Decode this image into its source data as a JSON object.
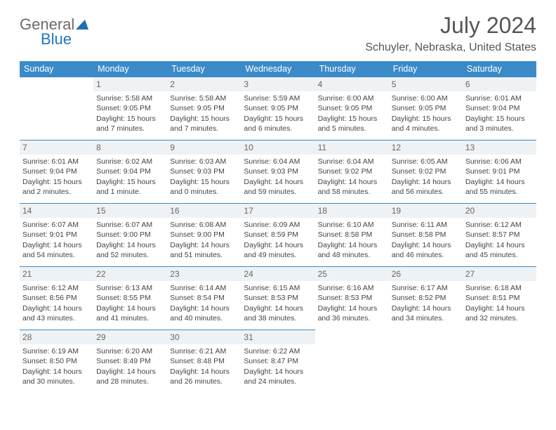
{
  "logo": {
    "general": "General",
    "blue": "Blue"
  },
  "header": {
    "title": "July 2024",
    "location": "Schuyler, Nebraska, United States"
  },
  "colors": {
    "header_bg": "#3b8bc9",
    "header_text": "#ffffff",
    "daynum_bg": "#eff2f4",
    "border": "#3b8bc9",
    "text": "#444444",
    "title_text": "#555555",
    "logo_gray": "#6b6b6b",
    "logo_blue": "#2176bd"
  },
  "weekdays": [
    "Sunday",
    "Monday",
    "Tuesday",
    "Wednesday",
    "Thursday",
    "Friday",
    "Saturday"
  ],
  "weeks": [
    [
      null,
      {
        "n": "1",
        "sr": "Sunrise: 5:58 AM",
        "ss": "Sunset: 9:05 PM",
        "dl1": "Daylight: 15 hours",
        "dl2": "and 7 minutes."
      },
      {
        "n": "2",
        "sr": "Sunrise: 5:58 AM",
        "ss": "Sunset: 9:05 PM",
        "dl1": "Daylight: 15 hours",
        "dl2": "and 7 minutes."
      },
      {
        "n": "3",
        "sr": "Sunrise: 5:59 AM",
        "ss": "Sunset: 9:05 PM",
        "dl1": "Daylight: 15 hours",
        "dl2": "and 6 minutes."
      },
      {
        "n": "4",
        "sr": "Sunrise: 6:00 AM",
        "ss": "Sunset: 9:05 PM",
        "dl1": "Daylight: 15 hours",
        "dl2": "and 5 minutes."
      },
      {
        "n": "5",
        "sr": "Sunrise: 6:00 AM",
        "ss": "Sunset: 9:05 PM",
        "dl1": "Daylight: 15 hours",
        "dl2": "and 4 minutes."
      },
      {
        "n": "6",
        "sr": "Sunrise: 6:01 AM",
        "ss": "Sunset: 9:04 PM",
        "dl1": "Daylight: 15 hours",
        "dl2": "and 3 minutes."
      }
    ],
    [
      {
        "n": "7",
        "sr": "Sunrise: 6:01 AM",
        "ss": "Sunset: 9:04 PM",
        "dl1": "Daylight: 15 hours",
        "dl2": "and 2 minutes."
      },
      {
        "n": "8",
        "sr": "Sunrise: 6:02 AM",
        "ss": "Sunset: 9:04 PM",
        "dl1": "Daylight: 15 hours",
        "dl2": "and 1 minute."
      },
      {
        "n": "9",
        "sr": "Sunrise: 6:03 AM",
        "ss": "Sunset: 9:03 PM",
        "dl1": "Daylight: 15 hours",
        "dl2": "and 0 minutes."
      },
      {
        "n": "10",
        "sr": "Sunrise: 6:04 AM",
        "ss": "Sunset: 9:03 PM",
        "dl1": "Daylight: 14 hours",
        "dl2": "and 59 minutes."
      },
      {
        "n": "11",
        "sr": "Sunrise: 6:04 AM",
        "ss": "Sunset: 9:02 PM",
        "dl1": "Daylight: 14 hours",
        "dl2": "and 58 minutes."
      },
      {
        "n": "12",
        "sr": "Sunrise: 6:05 AM",
        "ss": "Sunset: 9:02 PM",
        "dl1": "Daylight: 14 hours",
        "dl2": "and 56 minutes."
      },
      {
        "n": "13",
        "sr": "Sunrise: 6:06 AM",
        "ss": "Sunset: 9:01 PM",
        "dl1": "Daylight: 14 hours",
        "dl2": "and 55 minutes."
      }
    ],
    [
      {
        "n": "14",
        "sr": "Sunrise: 6:07 AM",
        "ss": "Sunset: 9:01 PM",
        "dl1": "Daylight: 14 hours",
        "dl2": "and 54 minutes."
      },
      {
        "n": "15",
        "sr": "Sunrise: 6:07 AM",
        "ss": "Sunset: 9:00 PM",
        "dl1": "Daylight: 14 hours",
        "dl2": "and 52 minutes."
      },
      {
        "n": "16",
        "sr": "Sunrise: 6:08 AM",
        "ss": "Sunset: 9:00 PM",
        "dl1": "Daylight: 14 hours",
        "dl2": "and 51 minutes."
      },
      {
        "n": "17",
        "sr": "Sunrise: 6:09 AM",
        "ss": "Sunset: 8:59 PM",
        "dl1": "Daylight: 14 hours",
        "dl2": "and 49 minutes."
      },
      {
        "n": "18",
        "sr": "Sunrise: 6:10 AM",
        "ss": "Sunset: 8:58 PM",
        "dl1": "Daylight: 14 hours",
        "dl2": "and 48 minutes."
      },
      {
        "n": "19",
        "sr": "Sunrise: 6:11 AM",
        "ss": "Sunset: 8:58 PM",
        "dl1": "Daylight: 14 hours",
        "dl2": "and 46 minutes."
      },
      {
        "n": "20",
        "sr": "Sunrise: 6:12 AM",
        "ss": "Sunset: 8:57 PM",
        "dl1": "Daylight: 14 hours",
        "dl2": "and 45 minutes."
      }
    ],
    [
      {
        "n": "21",
        "sr": "Sunrise: 6:12 AM",
        "ss": "Sunset: 8:56 PM",
        "dl1": "Daylight: 14 hours",
        "dl2": "and 43 minutes."
      },
      {
        "n": "22",
        "sr": "Sunrise: 6:13 AM",
        "ss": "Sunset: 8:55 PM",
        "dl1": "Daylight: 14 hours",
        "dl2": "and 41 minutes."
      },
      {
        "n": "23",
        "sr": "Sunrise: 6:14 AM",
        "ss": "Sunset: 8:54 PM",
        "dl1": "Daylight: 14 hours",
        "dl2": "and 40 minutes."
      },
      {
        "n": "24",
        "sr": "Sunrise: 6:15 AM",
        "ss": "Sunset: 8:53 PM",
        "dl1": "Daylight: 14 hours",
        "dl2": "and 38 minutes."
      },
      {
        "n": "25",
        "sr": "Sunrise: 6:16 AM",
        "ss": "Sunset: 8:53 PM",
        "dl1": "Daylight: 14 hours",
        "dl2": "and 36 minutes."
      },
      {
        "n": "26",
        "sr": "Sunrise: 6:17 AM",
        "ss": "Sunset: 8:52 PM",
        "dl1": "Daylight: 14 hours",
        "dl2": "and 34 minutes."
      },
      {
        "n": "27",
        "sr": "Sunrise: 6:18 AM",
        "ss": "Sunset: 8:51 PM",
        "dl1": "Daylight: 14 hours",
        "dl2": "and 32 minutes."
      }
    ],
    [
      {
        "n": "28",
        "sr": "Sunrise: 6:19 AM",
        "ss": "Sunset: 8:50 PM",
        "dl1": "Daylight: 14 hours",
        "dl2": "and 30 minutes."
      },
      {
        "n": "29",
        "sr": "Sunrise: 6:20 AM",
        "ss": "Sunset: 8:49 PM",
        "dl1": "Daylight: 14 hours",
        "dl2": "and 28 minutes."
      },
      {
        "n": "30",
        "sr": "Sunrise: 6:21 AM",
        "ss": "Sunset: 8:48 PM",
        "dl1": "Daylight: 14 hours",
        "dl2": "and 26 minutes."
      },
      {
        "n": "31",
        "sr": "Sunrise: 6:22 AM",
        "ss": "Sunset: 8:47 PM",
        "dl1": "Daylight: 14 hours",
        "dl2": "and 24 minutes."
      },
      null,
      null,
      null
    ]
  ]
}
